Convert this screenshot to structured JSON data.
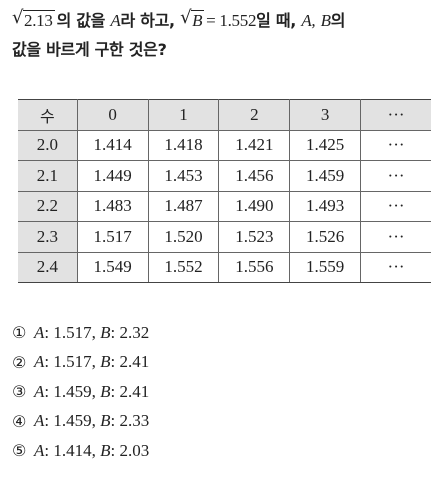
{
  "question": {
    "radicand_a": "2.13",
    "part1": "의 값을",
    "var_a": "A",
    "part2": "라 하고,",
    "radicand_b": "B",
    "equals": "= 1.552",
    "part3": "일 때,",
    "var_a2": "A,",
    "var_b2": "B",
    "part4": "의",
    "line2": "값을 바르게 구한 것은?"
  },
  "table": {
    "corner": "수",
    "columns": [
      "0",
      "1",
      "2",
      "3",
      "···"
    ],
    "rows": [
      {
        "label": "2.0",
        "cells": [
          "1.414",
          "1.418",
          "1.421",
          "1.425",
          "···"
        ]
      },
      {
        "label": "2.1",
        "cells": [
          "1.449",
          "1.453",
          "1.456",
          "1.459",
          "···"
        ]
      },
      {
        "label": "2.2",
        "cells": [
          "1.483",
          "1.487",
          "1.490",
          "1.493",
          "···"
        ]
      },
      {
        "label": "2.3",
        "cells": [
          "1.517",
          "1.520",
          "1.523",
          "1.526",
          "···"
        ]
      },
      {
        "label": "2.4",
        "cells": [
          "1.549",
          "1.552",
          "1.556",
          "1.559",
          "···"
        ]
      }
    ]
  },
  "choices": [
    {
      "mark": "①",
      "a_label": "A",
      "a_value": ": 1.517,",
      "b_label": "B",
      "b_value": ": 2.32"
    },
    {
      "mark": "②",
      "a_label": "A",
      "a_value": ": 1.517,",
      "b_label": "B",
      "b_value": ": 2.41"
    },
    {
      "mark": "③",
      "a_label": "A",
      "a_value": ": 1.459,",
      "b_label": "B",
      "b_value": ": 2.41"
    },
    {
      "mark": "④",
      "a_label": "A",
      "a_value": ": 1.459,",
      "b_label": "B",
      "b_value": ": 2.33"
    },
    {
      "mark": "⑤",
      "a_label": "A",
      "a_value": ": 1.414,",
      "b_label": "B",
      "b_value": ": 2.03"
    }
  ]
}
